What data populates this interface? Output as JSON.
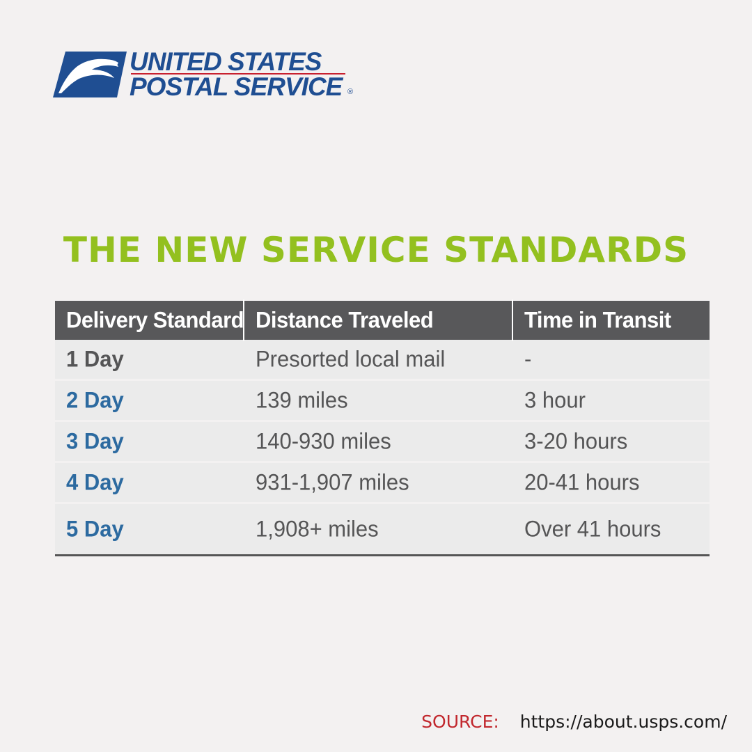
{
  "logo": {
    "line1": "UNITED STATES",
    "line2": "POSTAL SERVICE",
    "registered_mark": "®",
    "primary_color": "#1f4e92",
    "accent_color": "#c8202f",
    "icon": "eagle-icon"
  },
  "headline": "THE NEW SERVICE STANDARDS",
  "table": {
    "columns": [
      "Delivery Standard",
      "Distance Traveled",
      "Time in Transit"
    ],
    "rows": [
      {
        "standard": "1 Day",
        "distance": "Presorted local mail",
        "time": "-"
      },
      {
        "standard": "2 Day",
        "distance": "139 miles",
        "time": "3 hour"
      },
      {
        "standard": "3 Day",
        "distance": "140-930 miles",
        "time": "3-20 hours"
      },
      {
        "standard": "4 Day",
        "distance": "931-1,907 miles",
        "time": "20-41 hours"
      },
      {
        "standard": "5 Day",
        "distance": "1,908+ miles",
        "time": "Over 41 hours"
      }
    ]
  },
  "source": {
    "label": "SOURCE:",
    "url": "https://about.usps.com/"
  },
  "colors": {
    "background": "#f3f1f1",
    "headline": "#93c01f",
    "header_bg": "#58585a",
    "standard_text": "#2c6aa0",
    "source_label": "#c1272d"
  }
}
